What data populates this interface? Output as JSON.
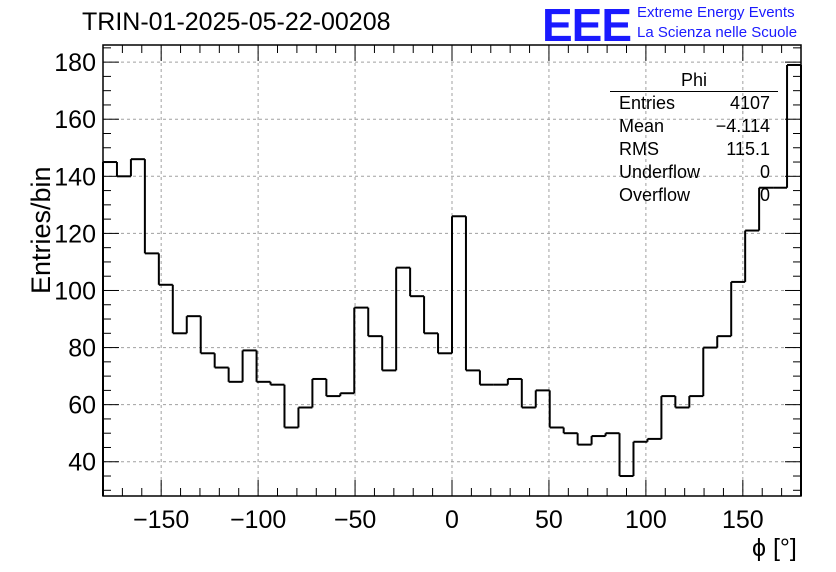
{
  "header": {
    "title": "TRIN-01-2025-05-22-00208",
    "logo_text": "EEE",
    "logo_line1": "Extreme Energy Events",
    "logo_line2": "La Scienza nelle Scuole"
  },
  "colors": {
    "logo": "#1a1aff",
    "line": "#000000",
    "grid": "#a0a0a0"
  },
  "stats": {
    "title": "Phi",
    "rows": [
      {
        "key": "Entries",
        "value": "4107"
      },
      {
        "key": "Mean",
        "value": "−4.114"
      },
      {
        "key": "RMS",
        "value": "115.1"
      },
      {
        "key": "Underflow",
        "value": "0"
      },
      {
        "key": "Overflow",
        "value": "0"
      }
    ]
  },
  "chart_data": {
    "type": "histogram",
    "title": "TRIN-01-2025-05-22-00208",
    "xlabel": "ϕ [°]",
    "ylabel": "Entries/bin",
    "xlim": [
      -180,
      180
    ],
    "ylim": [
      28,
      186
    ],
    "bin_width": 7.2,
    "bin_low_edges": [
      -180,
      -172.8,
      -165.6,
      -158.4,
      -151.2,
      -144,
      -136.8,
      -129.6,
      -122.4,
      -115.2,
      -108,
      -100.8,
      -93.6,
      -86.4,
      -79.2,
      -72,
      -64.8,
      -57.6,
      -50.4,
      -43.2,
      -36,
      -28.8,
      -21.6,
      -14.4,
      -7.2,
      0,
      7.2,
      14.4,
      21.6,
      28.8,
      36,
      43.2,
      50.4,
      57.6,
      64.8,
      72,
      79.2,
      86.4,
      93.6,
      100.8,
      108,
      115.2,
      122.4,
      129.6,
      136.8,
      144,
      151.2,
      158.4,
      165.6,
      172.8
    ],
    "values": [
      145,
      140,
      146,
      113,
      102,
      85,
      91,
      78,
      73,
      68,
      79,
      68,
      67,
      52,
      59,
      69,
      63,
      64,
      94,
      84,
      72,
      108,
      98,
      85,
      78,
      126,
      72,
      67,
      67,
      69,
      59,
      65,
      52,
      50,
      46,
      49,
      50,
      35,
      47,
      48,
      63,
      59,
      63,
      80,
      84,
      103,
      121,
      136,
      136,
      179
    ],
    "xticks": [
      -150,
      -100,
      -50,
      0,
      50,
      100,
      150
    ],
    "xtick_labels": [
      "−150",
      "−100",
      "−50",
      "0",
      "50",
      "100",
      "150"
    ],
    "yticks": [
      40,
      60,
      80,
      100,
      120,
      140,
      160,
      180
    ],
    "ytick_labels": [
      "40",
      "60",
      "80",
      "100",
      "120",
      "140",
      "160",
      "180"
    ],
    "grid": true,
    "legend": "top-right stats box"
  }
}
